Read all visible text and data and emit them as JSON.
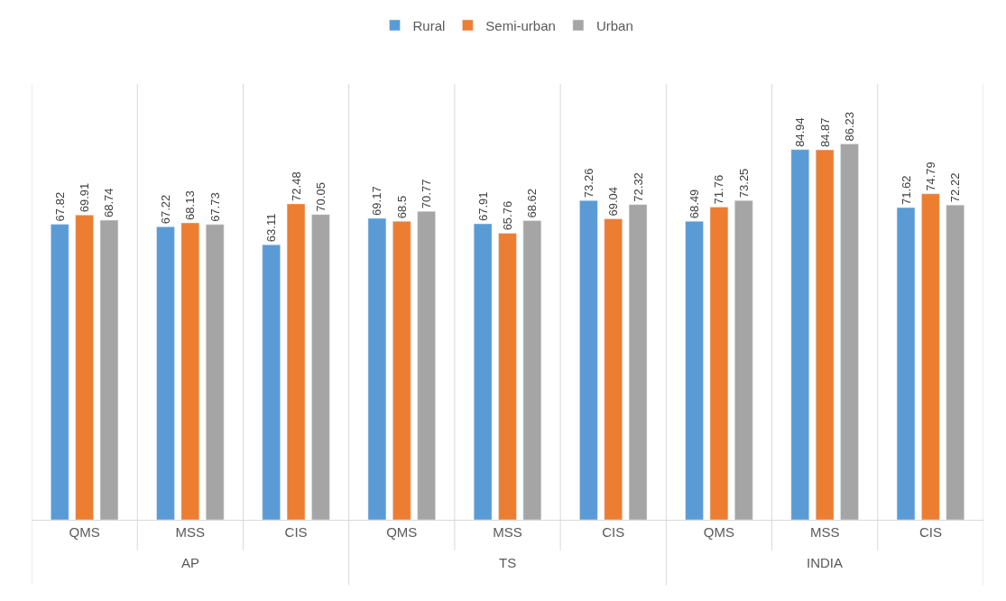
{
  "chart_data": {
    "type": "bar",
    "categories": [
      "QMS",
      "MSS",
      "CIS",
      "QMS",
      "MSS",
      "CIS",
      "QMS",
      "MSS",
      "CIS"
    ],
    "series": [
      {
        "name": "Rural",
        "color": "#5b9bd5",
        "values": [
          67.82,
          67.22,
          63.11,
          69.17,
          67.91,
          73.26,
          68.49,
          84.94,
          71.62
        ]
      },
      {
        "name": "Semi-urban",
        "color": "#ed7d31",
        "values": [
          69.91,
          68.13,
          72.48,
          68.5,
          65.76,
          69.04,
          71.76,
          84.87,
          74.79
        ]
      },
      {
        "name": "Urban",
        "color": "#a5a5a5",
        "values": [
          68.74,
          67.73,
          70.05,
          70.77,
          68.62,
          72.32,
          73.25,
          86.23,
          72.22
        ]
      }
    ],
    "annotations": [
      "AP",
      "TS",
      "INDIA"
    ],
    "ylim": [
      0,
      100
    ],
    "data_labels": true,
    "legend": "top",
    "tick_labels": "x"
  }
}
